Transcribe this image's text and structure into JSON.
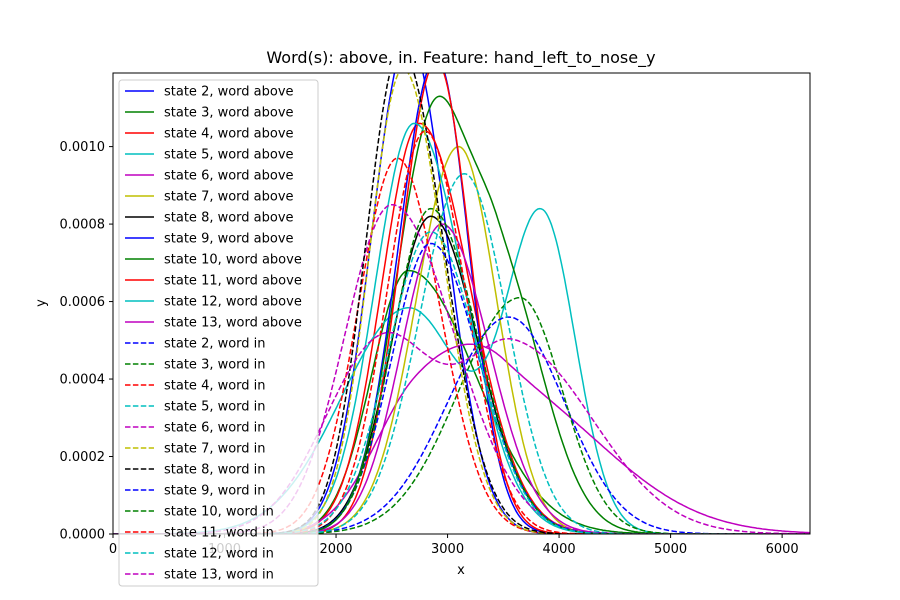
{
  "chart_data": {
    "type": "line",
    "title": "Word(s): above, in. Feature: hand_left_to_nose_y",
    "xlabel": "x",
    "ylabel": "y",
    "xlim": [
      0,
      6250
    ],
    "ylim": [
      0,
      0.00119
    ],
    "xticks": [
      0,
      1000,
      2000,
      3000,
      4000,
      5000,
      6000
    ],
    "xtick_labels": [
      "0",
      "1000",
      "2000",
      "3000",
      "4000",
      "5000",
      "6000"
    ],
    "yticks": [
      0,
      0.0002,
      0.0004,
      0.0006,
      0.0008,
      0.001
    ],
    "ytick_labels": [
      "0.0000",
      "0.0002",
      "0.0004",
      "0.0006",
      "0.0008",
      "0.0010"
    ],
    "grid": false,
    "legend_position": "left",
    "series": [
      {
        "name": "state 2, word above",
        "color": "#0000ff",
        "dash": "solid",
        "components": [
          {
            "w": 1,
            "mu": 2650,
            "sl": 330,
            "sr": 340,
            "h": 0.00128
          }
        ]
      },
      {
        "name": "state 3, word above",
        "color": "#008000",
        "dash": "solid",
        "components": [
          {
            "w": 1,
            "mu": 2650,
            "sl": 330,
            "sr": 600,
            "h": 0.00068
          }
        ]
      },
      {
        "name": "state 4, word above",
        "color": "#ff0000",
        "dash": "solid",
        "components": [
          {
            "w": 1,
            "mu": 2750,
            "sl": 340,
            "sr": 450,
            "h": 0.00106
          }
        ]
      },
      {
        "name": "state 5, word above",
        "color": "#00bfbf",
        "dash": "solid",
        "components": [
          {
            "w": 0.42,
            "mu": 2650,
            "sl": 600,
            "sr": 500,
            "h": 0
          },
          {
            "w": 0.58,
            "mu": 3850,
            "sl": 320,
            "sr": 300,
            "h": 0
          }
        ],
        "peak": 0.00084
      },
      {
        "name": "state 6, word above",
        "color": "#bf00bf",
        "dash": "solid",
        "components": [
          {
            "w": 0.45,
            "mu": 2700,
            "sl": 400,
            "sr": 500,
            "h": 0
          },
          {
            "w": 0.55,
            "mu": 3500,
            "sl": 500,
            "sr": 900,
            "h": 0
          }
        ],
        "peak": 0.00049
      },
      {
        "name": "state 7, word above",
        "color": "#bfbf00",
        "dash": "solid",
        "components": [
          {
            "w": 1,
            "mu": 3100,
            "sl": 380,
            "sr": 340,
            "h": 0.001
          }
        ]
      },
      {
        "name": "state 8, word above",
        "color": "#000000",
        "dash": "solid",
        "components": [
          {
            "w": 1,
            "mu": 2850,
            "sl": 350,
            "sr": 420,
            "h": 0.00082
          }
        ]
      },
      {
        "name": "state 9, word above",
        "color": "#0000ff",
        "dash": "solid",
        "components": [
          {
            "w": 1,
            "mu": 2900,
            "sl": 340,
            "sr": 290,
            "h": 0.00123
          }
        ]
      },
      {
        "name": "state 10, word above",
        "color": "#008000",
        "dash": "solid",
        "components": [
          {
            "w": 0.6,
            "mu": 2850,
            "sl": 330,
            "sr": 300,
            "h": 0
          },
          {
            "w": 0.4,
            "mu": 3450,
            "sl": 300,
            "sr": 400,
            "h": 0
          }
        ],
        "peak": 0.00113
      },
      {
        "name": "state 11, word above",
        "color": "#ff0000",
        "dash": "solid",
        "components": [
          {
            "w": 1,
            "mu": 2900,
            "sl": 320,
            "sr": 300,
            "h": 0.00122
          }
        ]
      },
      {
        "name": "state 12, word above",
        "color": "#00bfbf",
        "dash": "solid",
        "components": [
          {
            "w": 1,
            "mu": 2700,
            "sl": 350,
            "sr": 450,
            "h": 0.00106
          }
        ]
      },
      {
        "name": "state 13, word above",
        "color": "#bf00bf",
        "dash": "solid",
        "components": [
          {
            "w": 1,
            "mu": 2950,
            "sl": 360,
            "sr": 420,
            "h": 0.0008
          }
        ]
      },
      {
        "name": "state 2, word in",
        "color": "#0000ff",
        "dash": "dashed",
        "components": [
          {
            "w": 1,
            "mu": 3550,
            "sl": 550,
            "sr": 500,
            "h": 0.00056
          }
        ]
      },
      {
        "name": "state 3, word in",
        "color": "#008000",
        "dash": "dashed",
        "components": [
          {
            "w": 1,
            "mu": 3650,
            "sl": 550,
            "sr": 380,
            "h": 0.00061
          }
        ]
      },
      {
        "name": "state 4, word in",
        "color": "#ff0000",
        "dash": "dashed",
        "components": [
          {
            "w": 1,
            "mu": 2550,
            "sl": 350,
            "sr": 380,
            "h": 0.00097
          }
        ]
      },
      {
        "name": "state 5, word in",
        "color": "#00bfbf",
        "dash": "dashed",
        "components": [
          {
            "w": 1,
            "mu": 3150,
            "sl": 400,
            "sr": 380,
            "h": 0.00093
          }
        ]
      },
      {
        "name": "state 6, word in",
        "color": "#bf00bf",
        "dash": "dashed",
        "components": [
          {
            "w": 1,
            "mu": 2500,
            "sl": 420,
            "sr": 560,
            "h": 0.00085
          }
        ]
      },
      {
        "name": "state 7, word in",
        "color": "#bfbf00",
        "dash": "dashed",
        "components": [
          {
            "w": 1,
            "mu": 2600,
            "sl": 300,
            "sr": 360,
            "h": 0.0012
          }
        ]
      },
      {
        "name": "state 8, word in",
        "color": "#000000",
        "dash": "dashed",
        "components": [
          {
            "w": 1,
            "mu": 2580,
            "sl": 310,
            "sr": 380,
            "h": 0.00125
          }
        ]
      },
      {
        "name": "state 9, word in",
        "color": "#0000ff",
        "dash": "dashed",
        "components": [
          {
            "w": 1,
            "mu": 2850,
            "sl": 350,
            "sr": 430,
            "h": 0.00075
          }
        ]
      },
      {
        "name": "state 10, word in",
        "color": "#008000",
        "dash": "dashed",
        "components": [
          {
            "w": 1,
            "mu": 2850,
            "sl": 340,
            "sr": 420,
            "h": 0.00084
          }
        ]
      },
      {
        "name": "state 11, word in",
        "color": "#ff0000",
        "dash": "dashed",
        "components": [
          {
            "w": 1,
            "mu": 2800,
            "sl": 340,
            "sr": 360,
            "h": 0.00104
          }
        ]
      },
      {
        "name": "state 12, word in",
        "color": "#00bfbf",
        "dash": "dashed",
        "components": [
          {
            "w": 1,
            "mu": 2850,
            "sl": 380,
            "sr": 420,
            "h": 0.00078
          }
        ]
      },
      {
        "name": "state 13, word in",
        "color": "#bf00bf",
        "dash": "dashed",
        "components": [
          {
            "w": 0.5,
            "mu": 2400,
            "sl": 500,
            "sr": 450,
            "h": 0
          },
          {
            "w": 0.5,
            "mu": 3600,
            "sl": 500,
            "sr": 700,
            "h": 0
          }
        ],
        "peak": 0.00052
      }
    ]
  }
}
